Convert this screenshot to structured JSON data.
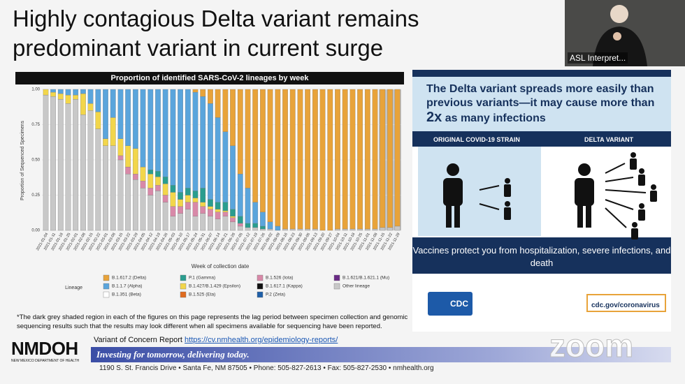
{
  "header": {
    "title": [
      "Highly contagious Delta variant remains",
      "predominant variant in current surge"
    ]
  },
  "video": {
    "label": "ASL Interpret..."
  },
  "chart_data": {
    "type": "stacked_bar",
    "title": "Proportion of identified SARS-CoV-2 lineages by week",
    "x_label": "Week of collection date",
    "y_label": "Proportion of Sequenced Specimens",
    "legend_title": "Lineage",
    "categories": [
      "2021-01-04",
      "2021-01-11",
      "2021-01-18",
      "2021-01-25",
      "2021-02-01",
      "2021-02-08",
      "2021-02-15",
      "2021-02-22",
      "2021-03-01",
      "2021-03-08",
      "2021-03-15",
      "2021-03-22",
      "2021-03-29",
      "2021-04-05",
      "2021-04-12",
      "2021-04-19",
      "2021-04-26",
      "2021-05-03",
      "2021-05-10",
      "2021-05-17",
      "2021-05-24",
      "2021-05-31",
      "2021-06-07",
      "2021-06-14",
      "2021-06-21",
      "2021-06-28",
      "2021-07-05",
      "2021-07-12",
      "2021-07-19",
      "2021-07-26",
      "2021-08-02",
      "2021-08-09",
      "2021-08-16",
      "2021-08-23",
      "2021-08-30",
      "2021-09-06",
      "2021-09-13",
      "2021-09-20",
      "2021-09-27",
      "2021-10-04",
      "2021-10-11",
      "2021-10-18",
      "2021-10-25",
      "2021-11-01",
      "2021-11-08",
      "2021-11-15",
      "2021-11-22",
      "2021-11-29"
    ],
    "series": [
      {
        "name": "B.1.617.2 (Delta)",
        "color": "#e8a33a",
        "values": [
          0,
          0,
          0,
          0,
          0,
          0,
          0,
          0,
          0,
          0,
          0,
          0,
          0,
          0,
          0,
          0,
          0,
          0,
          0,
          0,
          0.02,
          0.05,
          0.1,
          0.2,
          0.3,
          0.4,
          0.6,
          0.7,
          0.8,
          0.87,
          0.94,
          0.97,
          0.99,
          0.99,
          0.99,
          0.99,
          0.99,
          1,
          1,
          0.99,
          0.99,
          0.99,
          0.99,
          0.99,
          0.99,
          0.98,
          0.98,
          0.97
        ]
      },
      {
        "name": "B.1.1.7 (Alpha)",
        "color": "#5aa5dc",
        "values": [
          0,
          0.02,
          0.03,
          0.04,
          0.04,
          0.03,
          0.1,
          0.16,
          0.35,
          0.2,
          0.35,
          0.4,
          0.42,
          0.55,
          0.57,
          0.58,
          0.62,
          0.68,
          0.73,
          0.7,
          0.7,
          0.65,
          0.68,
          0.6,
          0.5,
          0.45,
          0.3,
          0.25,
          0.15,
          0.1,
          0.05,
          0.03,
          0,
          0,
          0,
          0,
          0,
          0,
          0,
          0,
          0,
          0,
          0,
          0,
          0,
          0,
          0,
          0
        ]
      },
      {
        "name": "B.1.351 (Beta)",
        "color": "#ffffff",
        "values": [
          0,
          0,
          0,
          0,
          0,
          0,
          0,
          0,
          0,
          0,
          0,
          0,
          0,
          0,
          0,
          0,
          0,
          0,
          0,
          0,
          0,
          0,
          0,
          0,
          0,
          0,
          0,
          0,
          0,
          0,
          0,
          0,
          0,
          0,
          0,
          0,
          0,
          0,
          0,
          0,
          0,
          0,
          0,
          0,
          0,
          0,
          0,
          0
        ]
      },
      {
        "name": "P.1 (Gamma)",
        "color": "#2a9d8f",
        "values": [
          0,
          0,
          0,
          0,
          0,
          0,
          0,
          0,
          0,
          0,
          0,
          0,
          0,
          0,
          0.03,
          0.04,
          0.05,
          0.05,
          0.05,
          0.05,
          0.05,
          0.1,
          0.05,
          0.05,
          0.06,
          0.05,
          0.05,
          0.03,
          0.03,
          0.02,
          0,
          0,
          0,
          0,
          0,
          0,
          0,
          0,
          0,
          0,
          0,
          0,
          0,
          0,
          0,
          0,
          0,
          0
        ]
      },
      {
        "name": "B.1.427/B.1.429 (Epsilon)",
        "color": "#f2d64b",
        "values": [
          0.04,
          0.03,
          0.04,
          0.06,
          0.03,
          0.15,
          0.05,
          0.12,
          0.05,
          0.2,
          0.12,
          0.15,
          0.18,
          0.1,
          0.1,
          0.06,
          0.08,
          0.1,
          0.05,
          0.05,
          0.03,
          0.03,
          0.02,
          0.02,
          0.01,
          0.01,
          0,
          0,
          0,
          0,
          0,
          0,
          0,
          0,
          0,
          0,
          0,
          0,
          0,
          0,
          0,
          0,
          0,
          0,
          0,
          0,
          0,
          0
        ]
      },
      {
        "name": "B.1.525 (Eta)",
        "color": "#e06b1f",
        "values": [
          0,
          0,
          0,
          0,
          0,
          0,
          0,
          0,
          0,
          0,
          0,
          0,
          0,
          0,
          0,
          0,
          0,
          0,
          0,
          0,
          0,
          0,
          0,
          0,
          0,
          0,
          0,
          0,
          0,
          0,
          0,
          0,
          0,
          0,
          0,
          0,
          0,
          0,
          0,
          0,
          0,
          0,
          0,
          0,
          0,
          0,
          0,
          0
        ]
      },
      {
        "name": "B.1.526 (Iota)",
        "color": "#d889a8",
        "values": [
          0,
          0,
          0,
          0,
          0,
          0,
          0,
          0,
          0,
          0,
          0.03,
          0.05,
          0.04,
          0.05,
          0.05,
          0.04,
          0.05,
          0.07,
          0.05,
          0.05,
          0.1,
          0.05,
          0.05,
          0.05,
          0.03,
          0.03,
          0.02,
          0,
          0,
          0,
          0,
          0,
          0,
          0,
          0,
          0,
          0,
          0,
          0,
          0,
          0,
          0,
          0,
          0,
          0,
          0,
          0,
          0
        ]
      },
      {
        "name": "B.1.617.1 (Kappa)",
        "color": "#111111",
        "values": [
          0,
          0,
          0,
          0,
          0,
          0,
          0,
          0,
          0,
          0,
          0,
          0,
          0,
          0,
          0,
          0,
          0,
          0,
          0,
          0,
          0,
          0,
          0,
          0,
          0,
          0,
          0,
          0,
          0,
          0,
          0,
          0,
          0,
          0,
          0,
          0,
          0,
          0,
          0,
          0,
          0,
          0,
          0,
          0,
          0,
          0,
          0,
          0
        ]
      },
      {
        "name": "P.2 (Zeta)",
        "color": "#1f5fa8",
        "values": [
          0,
          0,
          0,
          0,
          0,
          0,
          0,
          0,
          0,
          0,
          0,
          0,
          0,
          0,
          0,
          0,
          0,
          0,
          0,
          0,
          0,
          0,
          0,
          0,
          0,
          0,
          0,
          0,
          0,
          0,
          0,
          0,
          0,
          0,
          0,
          0,
          0,
          0,
          0,
          0,
          0,
          0,
          0,
          0,
          0,
          0,
          0,
          0
        ]
      },
      {
        "name": "B.1.621/B.1.621.1 (Mu)",
        "color": "#6a2b86",
        "values": [
          0,
          0,
          0,
          0,
          0,
          0,
          0,
          0,
          0,
          0,
          0,
          0,
          0,
          0,
          0,
          0,
          0,
          0,
          0,
          0,
          0,
          0,
          0,
          0,
          0,
          0,
          0,
          0,
          0,
          0,
          0,
          0,
          0,
          0,
          0,
          0,
          0,
          0,
          0,
          0,
          0,
          0,
          0,
          0,
          0,
          0,
          0,
          0
        ]
      },
      {
        "name": "Other lineage",
        "color": "#c8c8c8",
        "values": [
          0.96,
          0.95,
          0.93,
          0.9,
          0.93,
          0.82,
          0.85,
          0.72,
          0.6,
          0.6,
          0.5,
          0.4,
          0.36,
          0.3,
          0.25,
          0.28,
          0.2,
          0.1,
          0.12,
          0.15,
          0.1,
          0.12,
          0.1,
          0.08,
          0.1,
          0.06,
          0.03,
          0.02,
          0.02,
          0.01,
          0.01,
          0,
          0.01,
          0.01,
          0.01,
          0.01,
          0.01,
          0,
          0,
          0.01,
          0.01,
          0.01,
          0.01,
          0.01,
          0.01,
          0.02,
          0.02,
          0.03
        ]
      }
    ],
    "ylim": [
      0,
      1
    ],
    "yticks": [
      {
        "value": 0,
        "label": "0.00"
      },
      {
        "value": 0.25,
        "label": "0.25"
      },
      {
        "value": 0.5,
        "label": "0.50"
      },
      {
        "value": 0.75,
        "label": "0.75"
      },
      {
        "value": 1,
        "label": "1.00"
      }
    ],
    "grid": true
  },
  "footnote": "*The dark grey shaded region in each of the figures on this page represents the lag period between specimen collection and genomic sequencing results such that the results may look different when all specimens available for sequencing have been reported.",
  "infographic": {
    "headline_1": "The Delta variant spreads more easily than previous variants—it may cause more than",
    "headline_em": "2x",
    "headline_2": "as many infections",
    "left_label": "ORIGINAL COVID-19 STRAIN",
    "right_label": "DELTA VARIANT",
    "bottom": "Vaccines protect you from hospitalization, severe infections, and death",
    "logo": "CDC",
    "url": "cdc.gov/coronavirus"
  },
  "footer": {
    "logo": "NMDOH",
    "logo_sub": "NEW MEXICO DEPARTMENT OF HEALTH",
    "report_label": "Variant of Concern Report",
    "report_url": "https://cv.nmhealth.org/epidemiology-reports/",
    "tagline": "Investing for tomorrow, delivering today.",
    "address": "1190 S. St. Francis Drive • Santa Fe, NM 87505 • Phone: 505-827-2613 • Fax: 505-827-2530 • nmhealth.org",
    "zoom": "zoom"
  }
}
